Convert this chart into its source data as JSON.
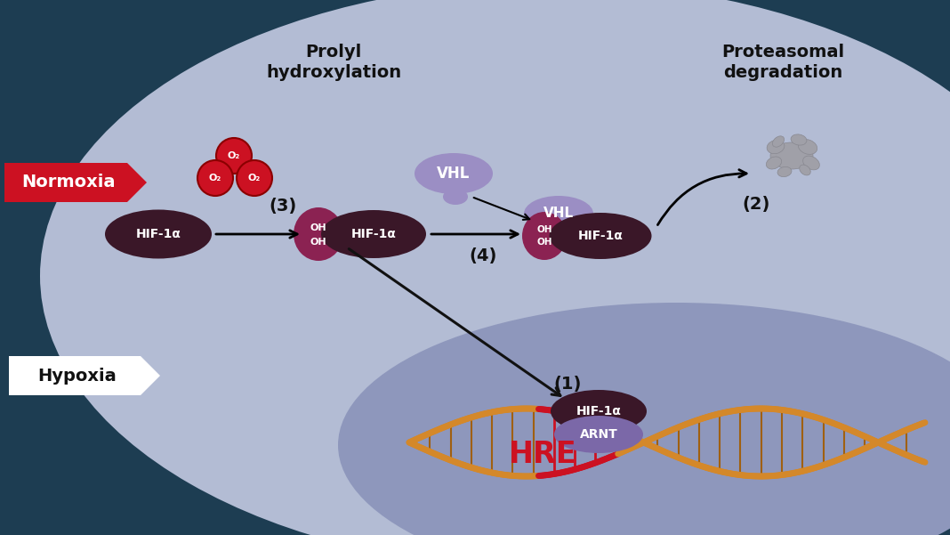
{
  "bg_dark": "#1d3d52",
  "bg_light": "#b3bcd4",
  "bg_nucleus": "#8e97bc",
  "normoxia_color": "#cc1122",
  "normoxia_text": "Normoxia",
  "hypoxia_text": "Hypoxia",
  "hif_color": "#3a1728",
  "hif_text": "HIF-1α",
  "oh_color": "#8b2252",
  "vhl_color": "#9b8ec4",
  "vhl_text": "VHL",
  "arnt_color": "#7b68a8",
  "arnt_text": "ARNT",
  "hre_text": "HRE",
  "hre_color": "#cc1122",
  "o2_color": "#cc1122",
  "o2_dark": "#8b0000",
  "o2_text": "O₂",
  "prolyl_title": "Prolyl\nhydroxylation",
  "proteasomal_title": "Proteasomal\ndegradation",
  "label1": "(1)",
  "label2": "(2)",
  "label3": "(3)",
  "label4": "(4)",
  "white": "#ffffff",
  "dark_text": "#111111",
  "proto_color": "#a0a0a8",
  "dna_gold": "#d4882a",
  "dna_red": "#cc1122",
  "arrow_color": "#111111"
}
